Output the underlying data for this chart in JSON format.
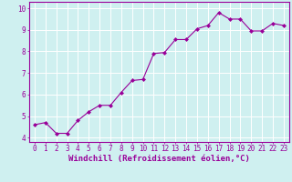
{
  "x": [
    0,
    1,
    2,
    3,
    4,
    5,
    6,
    7,
    8,
    9,
    10,
    11,
    12,
    13,
    14,
    15,
    16,
    17,
    18,
    19,
    20,
    21,
    22,
    23
  ],
  "y": [
    4.6,
    4.7,
    4.2,
    4.2,
    4.8,
    5.2,
    5.5,
    5.5,
    6.1,
    6.65,
    6.7,
    7.9,
    7.95,
    8.55,
    8.55,
    9.05,
    9.2,
    9.8,
    9.5,
    9.5,
    8.95,
    8.95,
    9.3,
    9.2
  ],
  "line_color": "#990099",
  "marker": "D",
  "marker_size": 2,
  "bg_color": "#cff0f0",
  "grid_color": "#ffffff",
  "xlabel": "Windchill (Refroidissement éolien,°C)",
  "xlabel_color": "#990099",
  "tick_color": "#990099",
  "xlim": [
    -0.5,
    23.5
  ],
  "ylim": [
    3.8,
    10.3
  ],
  "yticks": [
    4,
    5,
    6,
    7,
    8,
    9,
    10
  ],
  "xticks": [
    0,
    1,
    2,
    3,
    4,
    5,
    6,
    7,
    8,
    9,
    10,
    11,
    12,
    13,
    14,
    15,
    16,
    17,
    18,
    19,
    20,
    21,
    22,
    23
  ],
  "tick_fontsize": 5.5,
  "xlabel_fontsize": 6.5,
  "linewidth": 0.8
}
